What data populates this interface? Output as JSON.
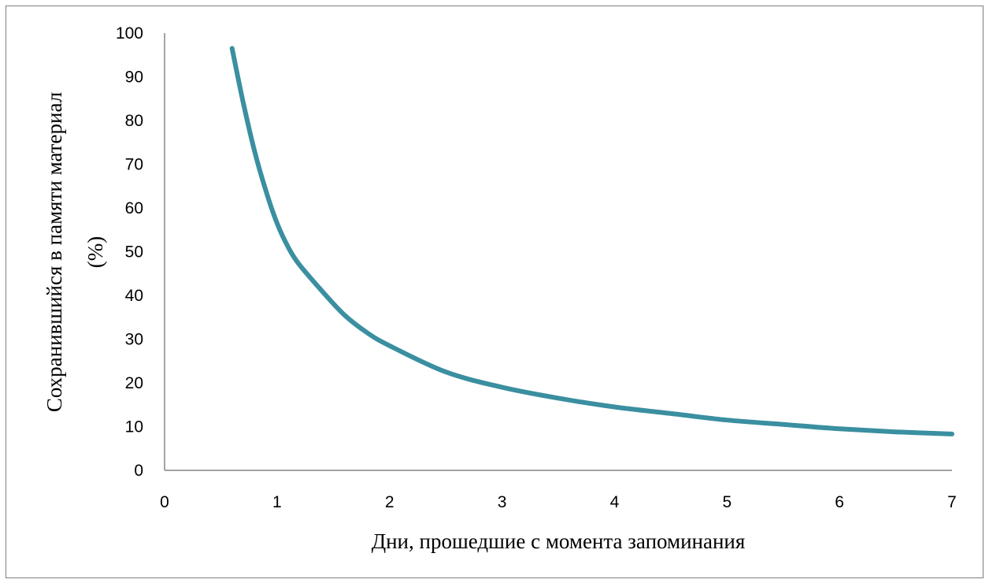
{
  "chart_data": {
    "type": "line",
    "title": "",
    "xlabel": "Дни, прошедшие с момента запоминания",
    "ylabel": [
      "Сохранившийся в памяти материал",
      "(%)"
    ],
    "xlim": [
      0,
      7
    ],
    "ylim": [
      0,
      100
    ],
    "x_ticks": [
      "0",
      "1",
      "2",
      "3",
      "4",
      "5",
      "6",
      "7"
    ],
    "y_ticks": [
      "0",
      "10",
      "20",
      "30",
      "40",
      "50",
      "60",
      "70",
      "80",
      "90",
      "100"
    ],
    "grid": false,
    "legend": "none",
    "series": [
      {
        "color": "#3a8fa0",
        "points": [
          [
            0.6,
            96.5
          ],
          [
            0.7,
            84
          ],
          [
            0.8,
            73
          ],
          [
            0.9,
            64
          ],
          [
            1.0,
            56.5
          ],
          [
            1.1,
            51
          ],
          [
            1.2,
            47
          ],
          [
            1.4,
            41
          ],
          [
            1.6,
            35.5
          ],
          [
            1.8,
            31.5
          ],
          [
            2.0,
            28.5
          ],
          [
            2.5,
            22.5
          ],
          [
            3.0,
            19
          ],
          [
            3.5,
            16.5
          ],
          [
            4.0,
            14.5
          ],
          [
            4.5,
            13
          ],
          [
            5.0,
            11.5
          ],
          [
            5.5,
            10.5
          ],
          [
            6.0,
            9.5
          ],
          [
            6.5,
            8.8
          ],
          [
            7.0,
            8.3
          ]
        ]
      }
    ]
  }
}
